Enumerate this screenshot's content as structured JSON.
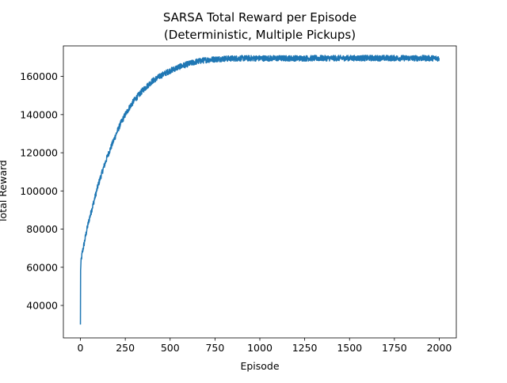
{
  "chart_data": {
    "type": "line",
    "title": "SARSA Total Reward per Episode",
    "subtitle": "(Deterministic, Multiple Pickups)",
    "xlabel": "Episode",
    "ylabel": "Total Reward",
    "xlim": [
      -95,
      2095
    ],
    "ylim": [
      23000,
      176000
    ],
    "xticks": [
      0,
      250,
      500,
      750,
      1000,
      1250,
      1500,
      1750,
      2000
    ],
    "yticks": [
      40000,
      60000,
      80000,
      100000,
      120000,
      140000,
      160000
    ],
    "grid": false,
    "series": [
      {
        "color": "#1f77b4",
        "n_episodes": 2000,
        "x": [
          0,
          1,
          2,
          3,
          5,
          10,
          20,
          30,
          40,
          50,
          60,
          75,
          100,
          125,
          150,
          175,
          200,
          225,
          250,
          275,
          300,
          350,
          400,
          450,
          500,
          550,
          600,
          650,
          700,
          750,
          800,
          850,
          900,
          1000,
          1100,
          1250,
          1500,
          1750,
          2000
        ],
        "y": [
          30000,
          58000,
          61000,
          62500,
          64000,
          67500,
          72000,
          77000,
          81500,
          85500,
          89000,
          94500,
          103500,
          111000,
          118000,
          124000,
          130000,
          135500,
          140000,
          144000,
          147500,
          153000,
          157500,
          160500,
          163000,
          165000,
          166500,
          167800,
          168600,
          169000,
          169300,
          169400,
          169500,
          169500,
          169500,
          169500,
          169600,
          169600,
          169500
        ],
        "noise_amplitude": 1500
      }
    ]
  }
}
